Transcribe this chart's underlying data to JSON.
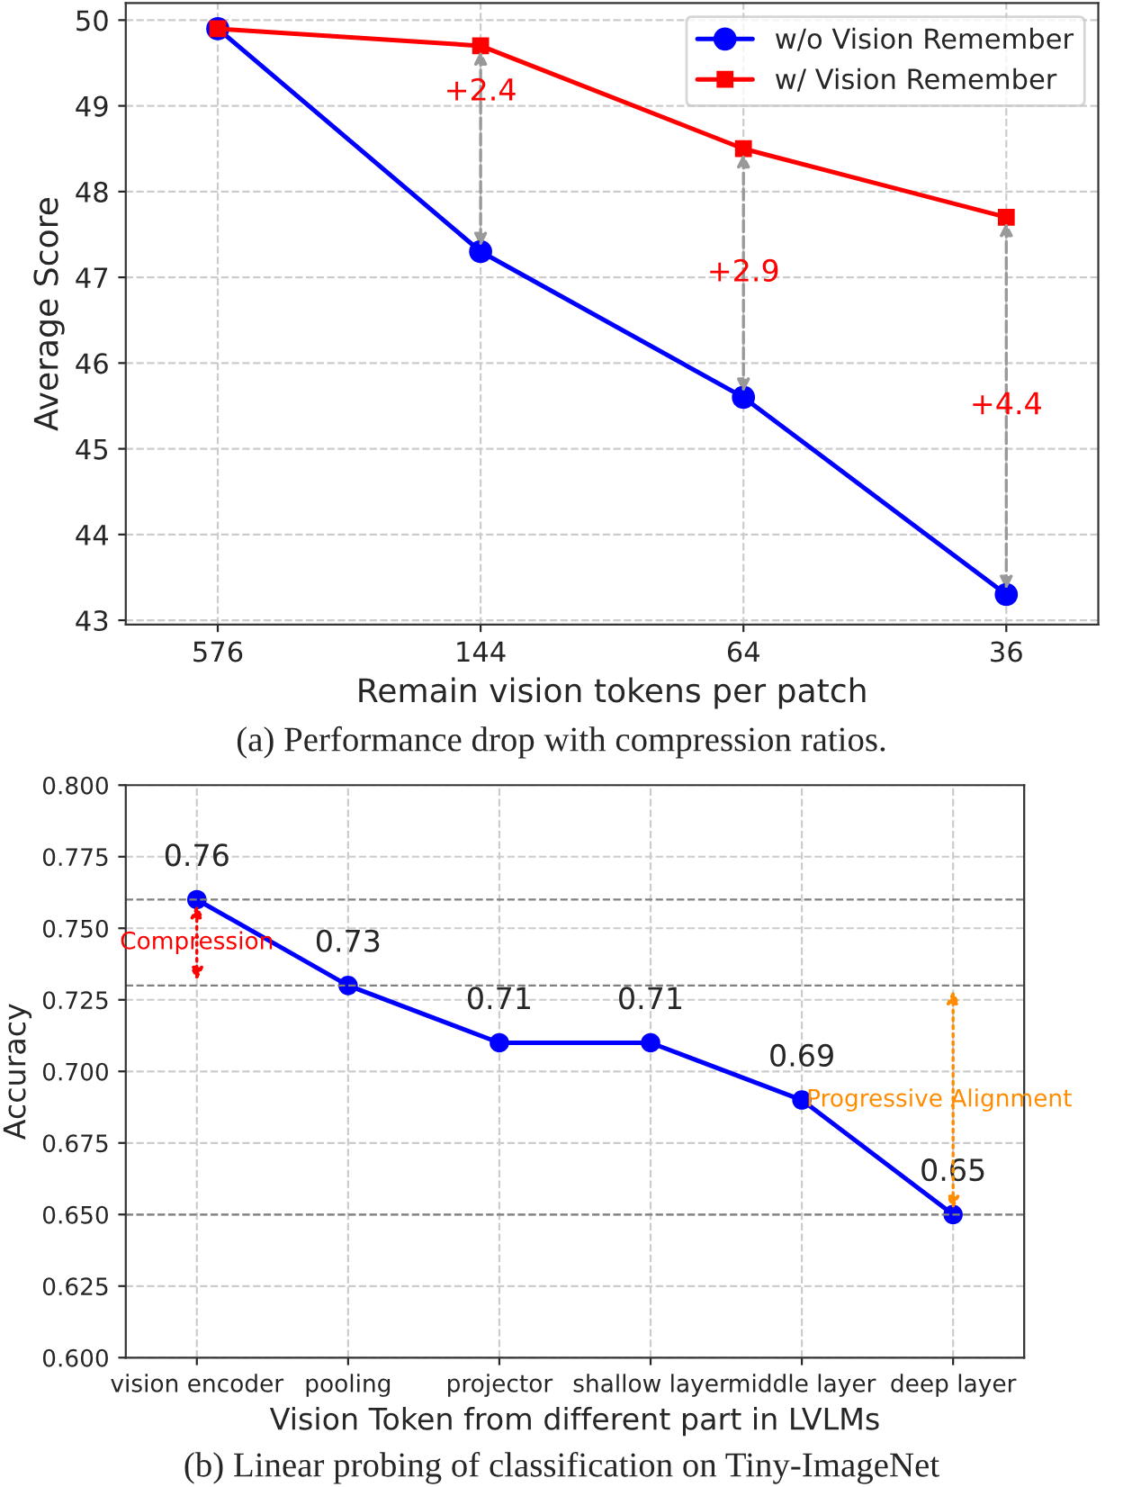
{
  "chart_data": [
    {
      "type": "line",
      "categories": [
        "576",
        "144",
        "64",
        "36"
      ],
      "xlabel": "Remain vision tokens per patch",
      "ylabel": "Average Score",
      "series": [
        {
          "name": "w/o Vision Remember",
          "color": "#0000ff",
          "marker": "circle",
          "values": [
            49.9,
            47.3,
            45.6,
            43.3
          ]
        },
        {
          "name": "w/ Vision Remember",
          "color": "#ff0000",
          "marker": "square",
          "values": [
            49.9,
            49.7,
            48.5,
            47.7
          ]
        }
      ],
      "ylim": [
        42.95,
        50.2
      ],
      "yticks": [
        43,
        44,
        45,
        46,
        47,
        48,
        49,
        50
      ],
      "grid": true,
      "legend": "top right",
      "annotations": [
        "+2.4",
        "+2.9",
        "+4.4",
        "(a) Performance drop with compression ratios."
      ]
    },
    {
      "type": "line",
      "categories": [
        "vision encoder",
        "pooling",
        "projector",
        "shallow layer",
        "middle layer",
        "deep layer"
      ],
      "xlabel": "Vision Token from different part in LVLMs",
      "ylabel": "Accuracy",
      "series": [
        {
          "color": "#0000ff",
          "values": [
            0.76,
            0.73,
            0.71,
            0.71,
            0.69,
            0.65
          ]
        }
      ],
      "marker": "circle",
      "data_labels": true,
      "ylim": [
        0.6,
        0.8
      ],
      "yticks": [
        {
          "value": 0.6,
          "label": "0.600"
        },
        {
          "value": 0.625,
          "label": "0.625"
        },
        {
          "value": 0.65,
          "label": "0.650"
        },
        {
          "value": 0.675,
          "label": "0.675"
        },
        {
          "value": 0.7,
          "label": "0.700"
        },
        {
          "value": 0.725,
          "label": "0.725"
        },
        {
          "value": 0.75,
          "label": "0.750"
        },
        {
          "value": 0.775,
          "label": "0.775"
        },
        {
          "value": 0.8,
          "label": "0.800"
        }
      ],
      "grid": true,
      "ref_lines": [
        {
          "axis": "y",
          "value": 0.76,
          "color": "#808080",
          "line_style": "dashed"
        },
        {
          "axis": "y",
          "value": 0.73,
          "color": "#808080",
          "line_style": "dashed"
        },
        {
          "axis": "y",
          "value": 0.65,
          "color": "#808080",
          "line_style": "dashed"
        }
      ],
      "annotations": [
        "Compression",
        "Progressive Alignment",
        "(b) Linear probing of classification on Tiny-ImageNet"
      ]
    }
  ]
}
